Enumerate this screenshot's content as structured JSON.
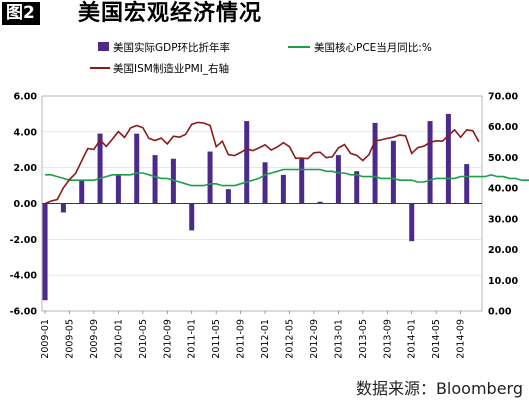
{
  "figure_label": "图2",
  "title": "美国宏观经济情况",
  "source": "数据来源：Bloomberg",
  "chart_data": {
    "type": "bar+line",
    "x_tick_labels": [
      "2009-01",
      "2009-05",
      "2009-09",
      "2010-01",
      "2010-05",
      "2010-09",
      "2011-01",
      "2011-05",
      "2011-09",
      "2012-01",
      "2012-05",
      "2012-09",
      "2013-01",
      "2013-05",
      "2013-09",
      "2014-01",
      "2014-05",
      "2014-09"
    ],
    "y_left": {
      "min": -6,
      "max": 6,
      "ticks": [
        "6.00",
        "4.00",
        "2.00",
        "0.00",
        "-2.00",
        "-4.00",
        "-6.00"
      ]
    },
    "y_right": {
      "min": 0,
      "max": 70,
      "ticks": [
        "70.00",
        "60.00",
        "50.00",
        "40.00",
        "30.00",
        "20.00",
        "10.00",
        "0.00"
      ]
    },
    "colors": {
      "bar": "#4b2a8c",
      "core_pce": "#1f9e4a",
      "ism": "#8b1a1a"
    },
    "series": [
      {
        "name": "美国实际GDP环比折年率",
        "kind": "bar",
        "axis": "left",
        "points": [
          {
            "month": 0,
            "value": -5.4
          },
          {
            "month": 3,
            "value": -0.5
          },
          {
            "month": 6,
            "value": 1.3
          },
          {
            "month": 9,
            "value": 3.9
          },
          {
            "month": 12,
            "value": 1.6
          },
          {
            "month": 15,
            "value": 3.9
          },
          {
            "month": 18,
            "value": 2.7
          },
          {
            "month": 21,
            "value": 2.5
          },
          {
            "month": 24,
            "value": -1.5
          },
          {
            "month": 27,
            "value": 2.9
          },
          {
            "month": 30,
            "value": 0.8
          },
          {
            "month": 33,
            "value": 4.6
          },
          {
            "month": 36,
            "value": 2.3
          },
          {
            "month": 39,
            "value": 1.6
          },
          {
            "month": 42,
            "value": 2.5
          },
          {
            "month": 45,
            "value": 0.1
          },
          {
            "month": 48,
            "value": 2.7
          },
          {
            "month": 51,
            "value": 1.8
          },
          {
            "month": 54,
            "value": 4.5
          },
          {
            "month": 57,
            "value": 3.5
          },
          {
            "month": 60,
            "value": -2.1
          },
          {
            "month": 63,
            "value": 4.6
          },
          {
            "month": 66,
            "value": 5.0
          },
          {
            "month": 69,
            "value": 2.2
          }
        ]
      },
      {
        "name": "美国核心PCE当月同比:%",
        "kind": "line",
        "axis": "left",
        "values": [
          1.6,
          1.6,
          1.5,
          1.4,
          1.3,
          1.3,
          1.3,
          1.3,
          1.3,
          1.4,
          1.5,
          1.6,
          1.6,
          1.6,
          1.6,
          1.7,
          1.7,
          1.6,
          1.5,
          1.4,
          1.4,
          1.3,
          1.2,
          1.1,
          1.0,
          1.0,
          1.0,
          1.1,
          1.1,
          1.0,
          1.0,
          1.0,
          1.1,
          1.2,
          1.3,
          1.4,
          1.6,
          1.7,
          1.8,
          1.9,
          1.9,
          1.9,
          1.9,
          1.9,
          1.9,
          1.9,
          1.8,
          1.8,
          1.7,
          1.7,
          1.6,
          1.6,
          1.5,
          1.5,
          1.5,
          1.4,
          1.4,
          1.4,
          1.3,
          1.3,
          1.3,
          1.2,
          1.2,
          1.3,
          1.4,
          1.4,
          1.4,
          1.4,
          1.5,
          1.5,
          1.5,
          1.5,
          1.5,
          1.6,
          1.5,
          1.5,
          1.4,
          1.4,
          1.3,
          1.3,
          1.3,
          1.3,
          1.4,
          1.4,
          1.5,
          1.5,
          1.6,
          1.6,
          1.5,
          1.5,
          1.4,
          1.3,
          1.3,
          1.4,
          1.5,
          1.6,
          1.7,
          1.5,
          1.4,
          1.3
        ]
      },
      {
        "name": "美国ISM制造业PMI_右轴",
        "kind": "line",
        "axis": "right",
        "values": [
          35.0,
          35.8,
          36.3,
          40.1,
          42.8,
          44.8,
          48.9,
          52.9,
          52.6,
          55.7,
          53.6,
          55.9,
          58.4,
          56.5,
          59.6,
          60.4,
          59.7,
          56.2,
          55.5,
          56.3,
          54.4,
          56.9,
          56.6,
          57.5,
          60.8,
          61.4,
          61.2,
          60.4,
          53.5,
          55.3,
          50.9,
          50.6,
          51.6,
          52.8,
          52.2,
          53.1,
          54.1,
          52.4,
          53.4,
          54.8,
          53.5,
          49.7,
          49.8,
          49.6,
          51.5,
          51.7,
          49.9,
          50.2,
          53.1,
          54.2,
          51.3,
          50.7,
          49.0,
          50.9,
          55.4,
          55.7,
          56.2,
          56.6,
          57.3,
          57.0,
          51.3,
          53.2,
          53.7,
          54.9,
          55.4,
          55.3,
          57.1,
          59.0,
          56.6,
          59.0,
          58.7,
          55.1
        ]
      }
    ]
  }
}
